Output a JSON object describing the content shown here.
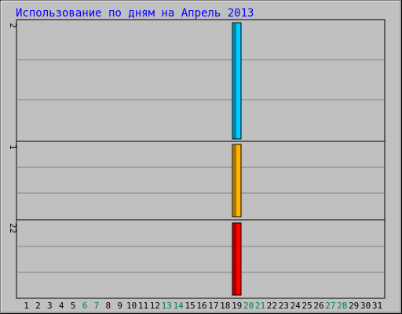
{
  "colors": {
    "background": "#c0c0c0",
    "title": "#0000ff",
    "grid": "#808080",
    "panel_border": "#000000",
    "weekday_label": "#000000",
    "weekend_label": "#008040"
  },
  "chart_data": {
    "type": "bar",
    "title": "Использование по дням на Апрель 2013",
    "categories": [
      "1",
      "2",
      "3",
      "4",
      "5",
      "6",
      "7",
      "8",
      "9",
      "10",
      "11",
      "12",
      "13",
      "14",
      "15",
      "16",
      "17",
      "18",
      "19",
      "20",
      "21",
      "22",
      "23",
      "24",
      "25",
      "26",
      "27",
      "28",
      "29",
      "30",
      "31"
    ],
    "weekend_days": [
      "6",
      "7",
      "13",
      "14",
      "20",
      "21",
      "27",
      "28"
    ],
    "grid": true,
    "panels": [
      {
        "axis_label": "2",
        "series": [
          {
            "color": "#00ccff",
            "values": [
              0,
              0,
              0,
              0,
              0,
              0,
              0,
              0,
              0,
              0,
              0,
              0,
              0,
              0,
              0,
              0,
              0,
              0,
              2,
              0,
              0,
              0,
              0,
              0,
              0,
              0,
              0,
              0,
              0,
              0,
              0
            ]
          }
        ],
        "ylim": [
          0,
          2
        ]
      },
      {
        "axis_label": "1",
        "series": [
          {
            "color": "#ffb400",
            "values": [
              0,
              0,
              0,
              0,
              0,
              0,
              0,
              0,
              0,
              0,
              0,
              0,
              0,
              0,
              0,
              0,
              0,
              0,
              1,
              0,
              0,
              0,
              0,
              0,
              0,
              0,
              0,
              0,
              0,
              0,
              0
            ]
          }
        ],
        "ylim": [
          0,
          1
        ]
      },
      {
        "axis_label": "22",
        "series": [
          {
            "color": "#ff0000",
            "values": [
              0,
              0,
              0,
              0,
              0,
              0,
              0,
              0,
              0,
              0,
              0,
              0,
              0,
              0,
              0,
              0,
              0,
              0,
              22,
              0,
              0,
              0,
              0,
              0,
              0,
              0,
              0,
              0,
              0,
              0,
              0
            ]
          }
        ],
        "ylim": [
          0,
          22
        ]
      }
    ]
  }
}
